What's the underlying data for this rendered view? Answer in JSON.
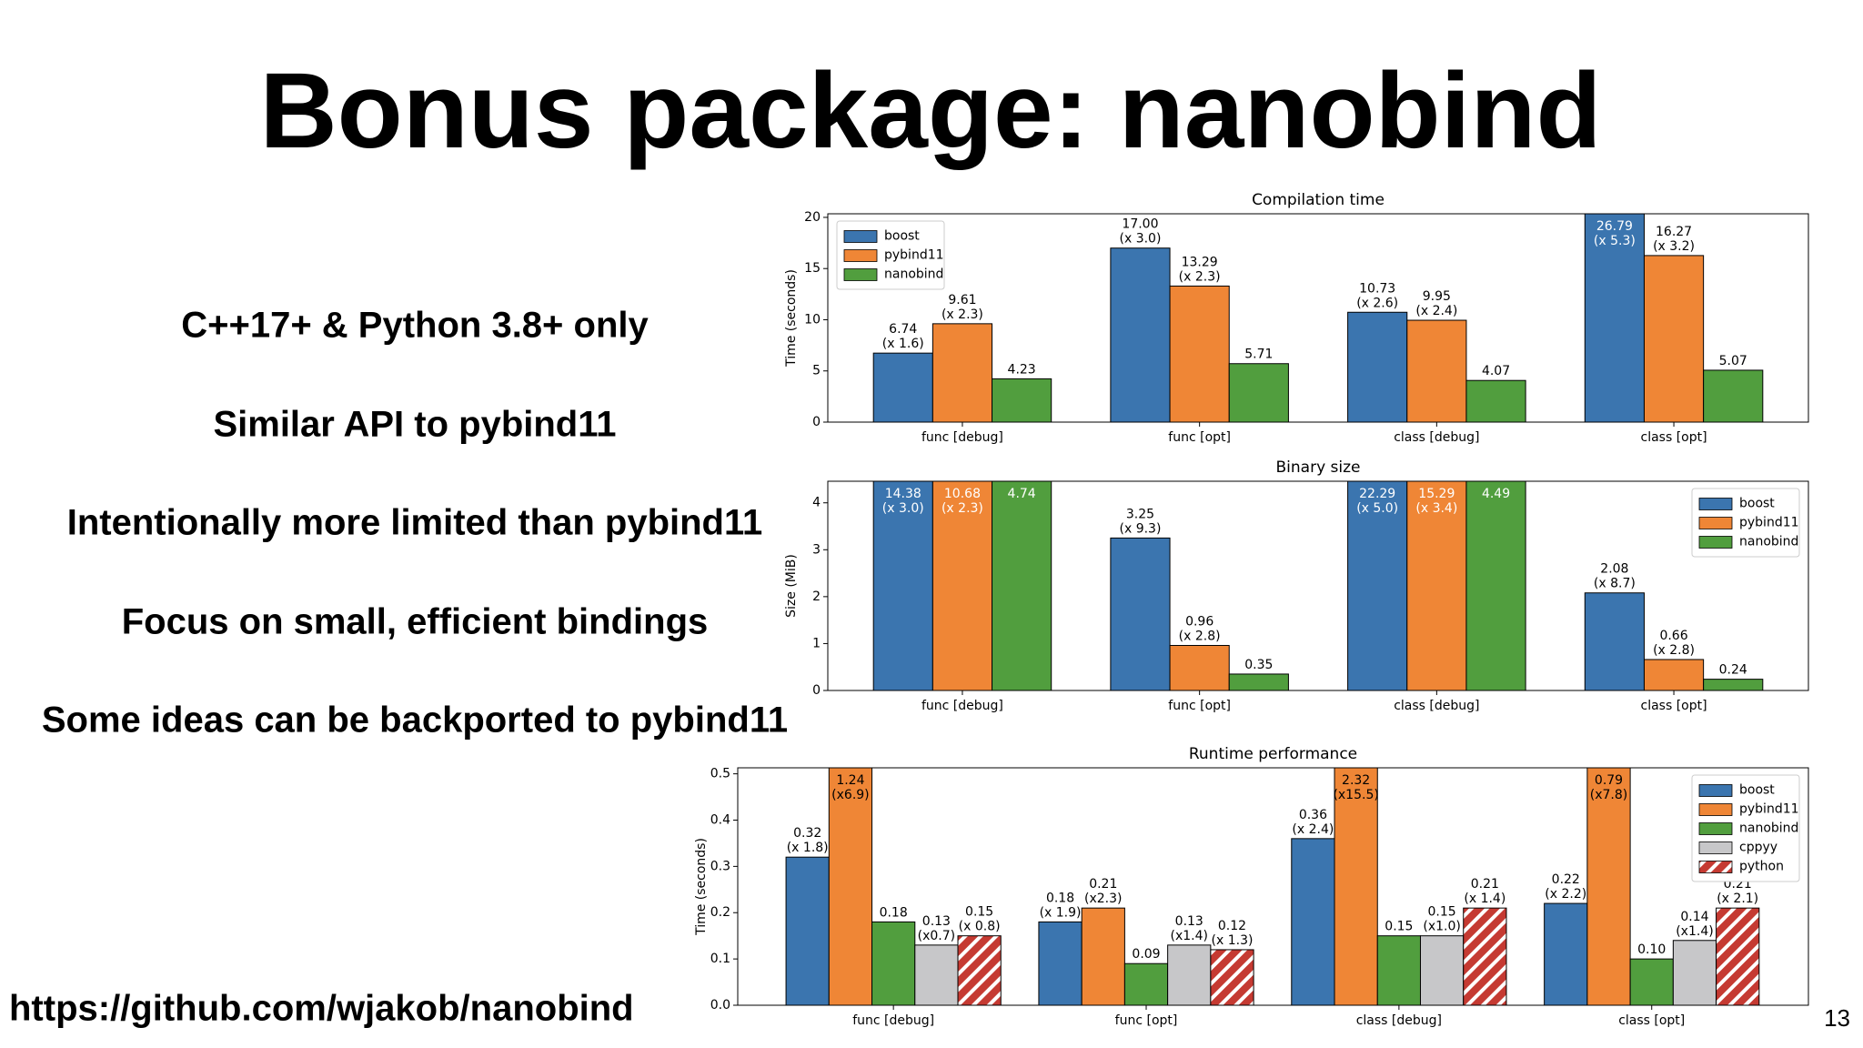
{
  "header": {
    "title": "Bonus package: nanobind"
  },
  "bullets": [
    "C++17+ & Python 3.8+ only",
    "Similar API to pybind11",
    "Intentionally more limited than pybind11",
    "Focus on small, efficient bindings",
    "Some ideas can be backported to pybind11"
  ],
  "footer": {
    "url": "https://github.com/wjakob/nanobind",
    "page_number": "13"
  },
  "chart_data": [
    {
      "type": "bar",
      "title": "Compilation time",
      "ylabel": "Time (seconds)",
      "categories": [
        "func [debug]",
        "func [opt]",
        "class [debug]",
        "class [opt]"
      ],
      "ylim": [
        0,
        20.35
      ],
      "yticks": [
        0,
        5,
        10,
        15,
        20
      ],
      "legend": "upper left",
      "series": [
        {
          "name": "boost",
          "color": "#3b75af",
          "values": [
            6.74,
            17.0,
            10.73,
            26.79
          ],
          "value_labels": [
            "6.74",
            "17.00",
            "10.73",
            "26.79"
          ],
          "ratio_labels": [
            "(x 1.6)",
            "(x 3.0)",
            "(x 2.6)",
            "(x 5.3)"
          ]
        },
        {
          "name": "pybind11",
          "color": "#ef8636",
          "values": [
            9.61,
            13.29,
            9.95,
            16.27
          ],
          "value_labels": [
            "9.61",
            "13.29",
            "9.95",
            "16.27"
          ],
          "ratio_labels": [
            "(x 2.3)",
            "(x 2.3)",
            "(x 2.4)",
            "(x 3.2)"
          ]
        },
        {
          "name": "nanobind",
          "color": "#519e3e",
          "values": [
            4.23,
            5.71,
            4.07,
            5.07
          ],
          "value_labels": [
            "4.23",
            "5.71",
            "4.07",
            "5.07"
          ]
        }
      ]
    },
    {
      "type": "bar",
      "title": "Binary size",
      "ylabel": "Size (MiB)",
      "categories": [
        "func [debug]",
        "func [opt]",
        "class [debug]",
        "class [opt]"
      ],
      "ylim": [
        0,
        4.46
      ],
      "yticks": [
        0,
        1,
        2,
        3,
        4
      ],
      "legend": "upper right",
      "series": [
        {
          "name": "boost",
          "color": "#3b75af",
          "values": [
            14.38,
            3.25,
            22.29,
            2.08
          ],
          "value_labels": [
            "14.38",
            "3.25",
            "22.29",
            "2.08"
          ],
          "ratio_labels": [
            "(x 3.0)",
            "(x 9.3)",
            "(x 5.0)",
            "(x 8.7)"
          ]
        },
        {
          "name": "pybind11",
          "color": "#ef8636",
          "values": [
            10.68,
            0.96,
            15.29,
            0.66
          ],
          "value_labels": [
            "10.68",
            "0.96",
            "15.29",
            "0.66"
          ],
          "ratio_labels": [
            "(x 2.3)",
            "(x 2.8)",
            "(x 3.4)",
            "(x 2.8)"
          ]
        },
        {
          "name": "nanobind",
          "color": "#519e3e",
          "values": [
            4.74,
            0.35,
            4.49,
            0.24
          ],
          "value_labels": [
            "4.74",
            "0.35",
            "4.49",
            "0.24"
          ]
        }
      ]
    },
    {
      "type": "bar",
      "title": "Runtime performance",
      "ylabel": "Time (seconds)",
      "categories": [
        "func [debug]",
        "func [opt]",
        "class [debug]",
        "class [opt]"
      ],
      "ylim": [
        0,
        0.513
      ],
      "yticks": [
        {
          "value": 0,
          "label": "0.0"
        },
        0.1,
        0.2,
        0.3,
        0.4,
        0.5
      ],
      "legend": "upper right",
      "series": [
        {
          "name": "boost",
          "color": "#3b75af",
          "values": [
            0.32,
            0.18,
            0.36,
            0.22
          ],
          "value_labels": [
            "0.32",
            "0.18",
            "0.36",
            "0.22"
          ],
          "ratio_labels": [
            "(x 1.8)",
            "(x 1.9)",
            "(x 2.4)",
            "(x 2.2)"
          ]
        },
        {
          "name": "pybind11",
          "color": "#ef8636",
          "values": [
            1.24,
            0.21,
            2.32,
            0.79
          ],
          "value_labels": [
            "1.24",
            "0.21",
            "2.32",
            "0.79"
          ],
          "ratio_labels": [
            "(x6.9)",
            "(x2.3)",
            "(x15.5)",
            "(x7.8)"
          ]
        },
        {
          "name": "nanobind",
          "color": "#519e3e",
          "values": [
            0.18,
            0.09,
            0.15,
            0.1
          ],
          "value_labels": [
            "0.18",
            "0.09",
            "0.15",
            "0.10"
          ]
        },
        {
          "name": "cppyy",
          "color": "#c7c7c9",
          "values": [
            0.13,
            0.13,
            0.15,
            0.14
          ],
          "value_labels": [
            "0.13",
            "0.13",
            "0.15",
            "0.14"
          ],
          "ratio_labels": [
            "(x0.7)",
            "(x1.4)",
            "(x1.0)",
            "(x1.4)"
          ]
        },
        {
          "name": "python",
          "color": "#c53a32",
          "hatch": true,
          "values": [
            0.15,
            0.12,
            0.21,
            0.21
          ],
          "value_labels": [
            "0.15",
            "0.12",
            "0.21",
            "0.21"
          ],
          "ratio_labels": [
            "(x 0.8)",
            "(x 1.3)",
            "(x 1.4)",
            "(x 2.1)"
          ]
        }
      ]
    }
  ]
}
